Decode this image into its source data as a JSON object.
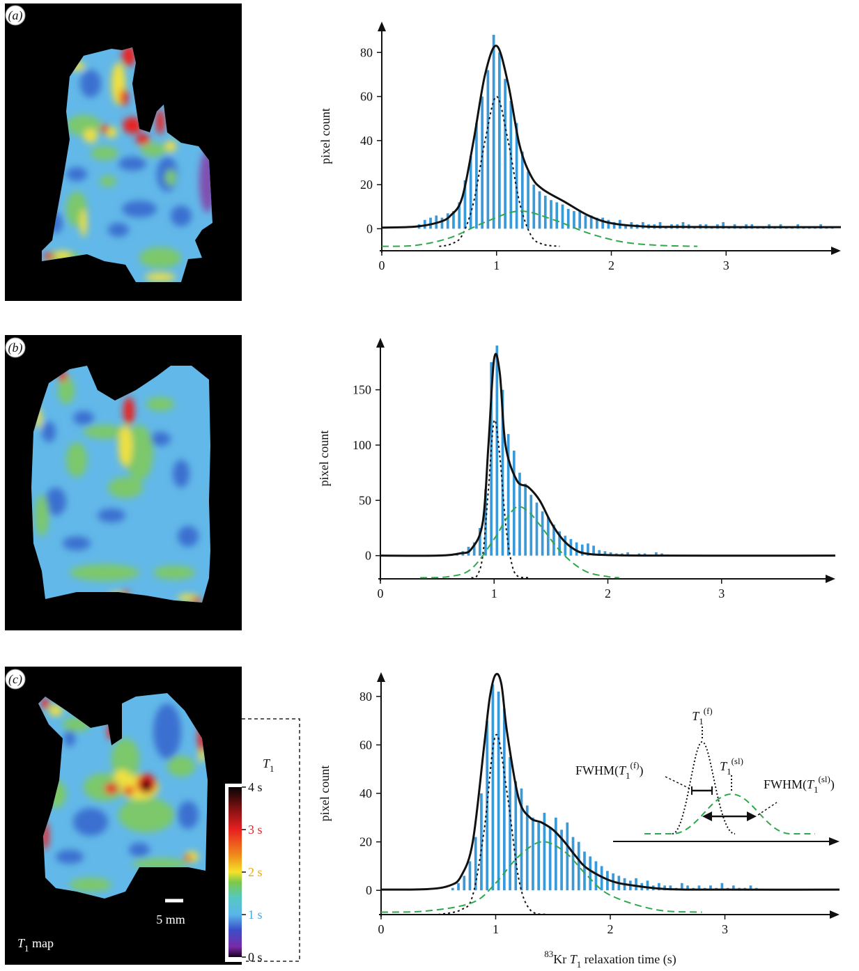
{
  "panels": [
    {
      "label": "(a)"
    },
    {
      "label": "(b)"
    },
    {
      "label": "(c)"
    }
  ],
  "colorbar": {
    "title": [
      {
        "text": "T",
        "style": "italic"
      },
      {
        "text": "1",
        "style": "sub"
      }
    ],
    "lim": [
      0,
      4
    ],
    "ticks": [
      {
        "value": 4,
        "label": "4 s",
        "color": "#111111"
      },
      {
        "value": 3,
        "label": "3 s",
        "color": "#e02525"
      },
      {
        "value": 2,
        "label": "2 s",
        "color": "#f0a800"
      },
      {
        "value": 1,
        "label": "1 s",
        "color": "#4aa6e0"
      },
      {
        "value": 0,
        "label": "0 s",
        "color": "#111111"
      }
    ]
  },
  "scale_bar": "5 mm",
  "map_label": [
    {
      "text": "T",
      "style": "italic"
    },
    {
      "text": "1",
      "style": "sub"
    },
    {
      "text": " map"
    }
  ],
  "chart_data": [
    {
      "type": "histogram",
      "ylabel": "pixel count",
      "color": "#3a9ad9",
      "xlim": [
        0,
        4
      ],
      "ylim": [
        -10,
        94
      ],
      "xticks": [
        0,
        1,
        2,
        3
      ],
      "yticks": [
        0,
        20,
        40,
        60,
        80
      ],
      "bins": [
        0.3,
        0.35,
        0.4,
        0.45,
        0.5,
        0.55,
        0.6,
        0.65,
        0.7,
        0.75,
        0.8,
        0.85,
        0.9,
        0.95,
        1,
        1.05,
        1.1,
        1.15,
        1.2,
        1.25,
        1.3,
        1.35,
        1.4,
        1.45,
        1.5,
        1.55,
        1.6,
        1.65,
        1.7,
        1.75,
        1.8,
        1.85,
        1.9,
        1.95,
        2,
        2.05,
        2.1,
        2.15,
        2.2,
        2.25,
        2.3,
        2.35,
        2.4,
        2.45,
        2.5,
        2.55,
        2.6,
        2.65,
        2.7,
        2.75,
        2.8,
        2.85,
        2.9,
        2.95,
        3,
        3.05,
        3.1,
        3.15,
        3.2,
        3.25,
        3.3,
        3.35,
        3.4,
        3.45,
        3.5,
        3.55,
        3.6,
        3.65,
        3.7,
        3.75,
        3.8,
        3.85,
        3.9,
        3.95
      ],
      "values": [
        2,
        4,
        5,
        6,
        5,
        7,
        8,
        12,
        22,
        33,
        48,
        60,
        72,
        88,
        80,
        68,
        58,
        48,
        35,
        26,
        20,
        17,
        15,
        13,
        12,
        11,
        9,
        8,
        8,
        6,
        6,
        5,
        5,
        4,
        3,
        4,
        2,
        3,
        2,
        3,
        2,
        2,
        3,
        1,
        2,
        2,
        3,
        2,
        1,
        2,
        2,
        1,
        2,
        3,
        1,
        2,
        1,
        2,
        2,
        1,
        1,
        2,
        1,
        2,
        1,
        1,
        2,
        1,
        1,
        1,
        2,
        1,
        1
      ],
      "series": [
        {
          "line_style": "solid",
          "color": "#111111",
          "x": [
            0,
            0.3,
            0.5,
            0.6,
            0.7,
            0.8,
            0.9,
            1.0,
            1.1,
            1.2,
            1.3,
            1.4,
            1.6,
            1.8,
            2.0,
            2.3,
            2.7,
            3.2,
            4.0
          ],
          "values": [
            0.5,
            1,
            3,
            6,
            14,
            40,
            70,
            83,
            66,
            38,
            24,
            18,
            12,
            6,
            2.5,
            1,
            0.8,
            0.7,
            0.7
          ]
        },
        {
          "line_style": "dotted",
          "color": "#111111",
          "x": [
            0.5,
            0.6,
            0.7,
            0.8,
            0.9,
            1.0,
            1.1,
            1.2,
            1.3,
            1.4,
            1.55
          ],
          "values": [
            -8,
            -7,
            -3,
            12,
            40,
            60,
            40,
            12,
            -3,
            -7,
            -8
          ]
        },
        {
          "line_style": "dashed",
          "color": "#2ea84a",
          "x": [
            0,
            0.3,
            0.6,
            0.9,
            1.2,
            1.5,
            1.8,
            2.1,
            2.4,
            2.75
          ],
          "values": [
            -8,
            -7.5,
            -4,
            3,
            8,
            4,
            -2,
            -6,
            -7.5,
            -8
          ]
        }
      ]
    },
    {
      "type": "histogram",
      "ylabel": "pixel count",
      "color": "#3a9ad9",
      "xlim": [
        0,
        4
      ],
      "ylim": [
        -21,
        197
      ],
      "xticks": [
        0,
        1,
        2,
        3
      ],
      "yticks": [
        0,
        50,
        100,
        150
      ],
      "bins": [
        0.6,
        0.65,
        0.7,
        0.75,
        0.8,
        0.85,
        0.9,
        0.95,
        1,
        1.05,
        1.1,
        1.15,
        1.2,
        1.25,
        1.3,
        1.35,
        1.4,
        1.45,
        1.5,
        1.55,
        1.6,
        1.65,
        1.7,
        1.75,
        1.8,
        1.85,
        1.9,
        1.95,
        2,
        2.05,
        2.1,
        2.15,
        2.2,
        2.25,
        2.3,
        2.35,
        2.4,
        2.45,
        2.5,
        2.55
      ],
      "values": [
        1,
        2,
        4,
        8,
        12,
        25,
        60,
        175,
        190,
        150,
        110,
        95,
        75,
        65,
        55,
        48,
        40,
        35,
        28,
        22,
        18,
        15,
        12,
        10,
        11,
        9,
        5,
        4,
        3,
        2,
        2,
        3,
        1,
        2,
        2,
        1,
        3,
        2,
        1
      ],
      "series": [
        {
          "line_style": "solid",
          "color": "#111111",
          "x": [
            0,
            0.5,
            0.7,
            0.8,
            0.9,
            0.95,
            1.0,
            1.05,
            1.1,
            1.2,
            1.3,
            1.4,
            1.5,
            1.6,
            1.7,
            1.8,
            2.0,
            2.5,
            4.0
          ],
          "values": [
            0,
            0,
            2,
            6,
            30,
            100,
            178,
            165,
            100,
            68,
            62,
            50,
            30,
            15,
            6,
            2,
            0.5,
            0,
            0
          ]
        },
        {
          "line_style": "dotted",
          "color": "#111111",
          "x": [
            0.8,
            0.85,
            0.9,
            0.95,
            1.0,
            1.05,
            1.1,
            1.15,
            1.2,
            1.3
          ],
          "values": [
            -20,
            -18,
            0,
            60,
            122,
            90,
            30,
            -5,
            -18,
            -20
          ]
        },
        {
          "line_style": "dashed",
          "color": "#2ea84a",
          "x": [
            0.35,
            0.6,
            0.8,
            1.0,
            1.1,
            1.2,
            1.3,
            1.4,
            1.6,
            1.8,
            2.0,
            2.1
          ],
          "values": [
            -20,
            -19,
            -12,
            15,
            32,
            44,
            40,
            28,
            2,
            -14,
            -19,
            -20
          ]
        }
      ]
    },
    {
      "type": "histogram",
      "ylabel": "pixel count",
      "xlabel": [
        {
          "text": "83",
          "style": "sup"
        },
        {
          "text": "Kr "
        },
        {
          "text": "T",
          "style": "italic"
        },
        {
          "text": "1",
          "style": "sub"
        },
        {
          "text": " relaxation time (s)"
        }
      ],
      "color": "#3a9ad9",
      "xlim": [
        0,
        4
      ],
      "ylim": [
        -10,
        90
      ],
      "xticks": [
        0,
        1,
        2,
        3
      ],
      "yticks": [
        0,
        20,
        40,
        60,
        80
      ],
      "bins": [
        0.6,
        0.65,
        0.7,
        0.75,
        0.8,
        0.85,
        0.9,
        0.95,
        1,
        1.05,
        1.1,
        1.15,
        1.2,
        1.25,
        1.3,
        1.35,
        1.4,
        1.45,
        1.5,
        1.55,
        1.6,
        1.65,
        1.7,
        1.75,
        1.8,
        1.85,
        1.9,
        1.95,
        2,
        2.05,
        2.1,
        2.15,
        2.2,
        2.25,
        2.3,
        2.35,
        2.4,
        2.45,
        2.5,
        2.55,
        2.6,
        2.65,
        2.7,
        2.75,
        2.8,
        2.85,
        2.9,
        2.95,
        3,
        3.05,
        3.1,
        3.15,
        3.2,
        3.25,
        3.3
      ],
      "values": [
        1,
        3,
        6,
        12,
        22,
        40,
        70,
        85,
        82,
        75,
        55,
        45,
        42,
        35,
        30,
        28,
        32,
        26,
        30,
        25,
        28,
        22,
        20,
        16,
        14,
        12,
        10,
        8,
        7,
        6,
        5,
        4,
        5,
        3,
        4,
        2,
        3,
        2,
        2,
        1,
        3,
        2,
        1,
        2,
        1,
        2,
        1,
        3,
        1,
        2,
        1,
        1,
        2,
        1
      ],
      "series": [
        {
          "line_style": "solid",
          "color": "#111111",
          "x": [
            0,
            0.4,
            0.6,
            0.7,
            0.8,
            0.9,
            0.95,
            1.0,
            1.05,
            1.1,
            1.2,
            1.3,
            1.4,
            1.5,
            1.6,
            1.7,
            1.8,
            2.0,
            2.2,
            2.5,
            3,
            4
          ],
          "values": [
            0.3,
            0.5,
            2,
            6,
            20,
            60,
            80,
            89,
            85,
            65,
            38,
            30,
            28,
            25,
            20,
            14,
            9,
            4,
            2,
            0.5,
            0.3,
            0.3
          ]
        },
        {
          "line_style": "dotted",
          "color": "#111111",
          "x": [
            0.5,
            0.7,
            0.8,
            0.9,
            1.0,
            1.1,
            1.2,
            1.3,
            1.45
          ],
          "values": [
            -10,
            -8,
            -2,
            25,
            64,
            40,
            5,
            -8,
            -10
          ]
        },
        {
          "line_style": "dashed",
          "color": "#2ea84a",
          "x": [
            0,
            0.4,
            0.8,
            1.0,
            1.2,
            1.4,
            1.6,
            1.8,
            2.0,
            2.4,
            2.8
          ],
          "values": [
            -9,
            -8.5,
            -5,
            3,
            14,
            20,
            16,
            6,
            -2,
            -8,
            -9
          ]
        }
      ],
      "annotations": [
        [
          {
            "text": "T",
            "style": "italic"
          },
          {
            "text": "1",
            "style": "sub"
          },
          {
            "text": "(f)",
            "style": "sup"
          }
        ],
        [
          {
            "text": "T",
            "style": "italic"
          },
          {
            "text": "1",
            "style": "sub"
          },
          {
            "text": "(sl)",
            "style": "sup"
          }
        ],
        [
          {
            "text": "FWHM("
          },
          {
            "text": "T",
            "style": "italic"
          },
          {
            "text": "1",
            "style": "sub"
          },
          {
            "text": "(f)",
            "style": "sup"
          },
          {
            "text": ")"
          }
        ],
        [
          {
            "text": "FWHM("
          },
          {
            "text": "T",
            "style": "italic"
          },
          {
            "text": "1",
            "style": "sub"
          },
          {
            "text": "(sl)",
            "style": "sup"
          },
          {
            "text": ")"
          }
        ]
      ]
    }
  ]
}
